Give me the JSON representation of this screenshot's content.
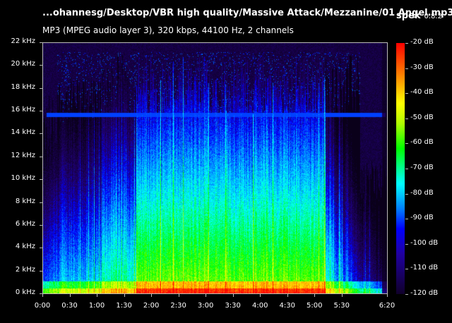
{
  "header": {
    "title": "...ohannesg/Desktop/VBR high quality/Massive Attack/Mezzanine/01 Angel.mp3",
    "app_name": "spek",
    "app_version": "0.8.2",
    "file_info": "MP3 (MPEG audio layer 3), 320 kbps, 44100 Hz, 2 channels"
  },
  "frequency_axis": {
    "ticks": [
      "22 kHz",
      "20 kHz",
      "18 kHz",
      "16 kHz",
      "14 kHz",
      "12 kHz",
      "10 kHz",
      "8 kHz",
      "6 kHz",
      "4 kHz",
      "2 kHz",
      "0 kHz"
    ],
    "max_khz": 22
  },
  "time_axis": {
    "ticks": [
      "0:00",
      "0:30",
      "1:00",
      "1:30",
      "2:00",
      "2:30",
      "3:00",
      "3:30",
      "4:00",
      "4:30",
      "5:00",
      "5:30",
      "6:20"
    ],
    "duration_seconds": 380
  },
  "db_scale": {
    "ticks": [
      "-20 dB",
      "-30 dB",
      "-40 dB",
      "-50 dB",
      "-60 dB",
      "-70 dB",
      "-80 dB",
      "-90 dB",
      "-100 dB",
      "-110 dB",
      "-120 dB"
    ],
    "max_db": -20,
    "min_db": -120
  },
  "colors": {
    "background": "#000000",
    "text": "#ffffff",
    "plot_border": "#bbbbbb",
    "lowpass_cutoff_khz": 16
  }
}
